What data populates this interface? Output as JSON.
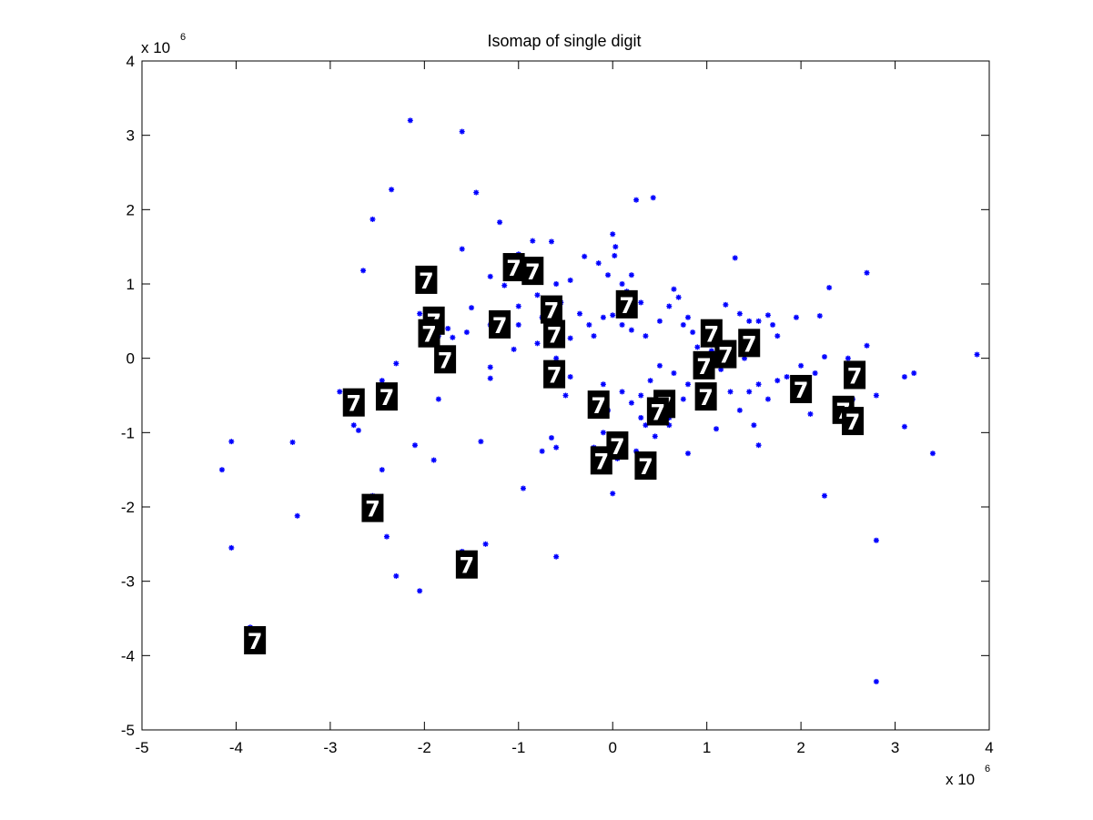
{
  "chart_data": {
    "type": "scatter",
    "title": "Isomap of single digit",
    "xlim": [
      -5,
      4
    ],
    "ylim": [
      -5,
      4
    ],
    "x_ticks": [
      "-5",
      "-4",
      "-3",
      "-2",
      "-1",
      "0",
      "1",
      "2",
      "3",
      "4"
    ],
    "y_ticks": [
      "-5",
      "-4",
      "-3",
      "-2",
      "-1",
      "0",
      "1",
      "2",
      "3",
      "4"
    ],
    "x_exponent": {
      "base": "x 10",
      "power": "6"
    },
    "y_exponent": {
      "base": "x 10",
      "power": "6"
    },
    "grid": false,
    "marker_color": "#0000ff",
    "points": [
      [
        -2.15,
        3.2
      ],
      [
        -1.6,
        3.05
      ],
      [
        -2.35,
        2.27
      ],
      [
        -1.45,
        2.23
      ],
      [
        -2.55,
        1.87
      ],
      [
        -1.2,
        1.83
      ],
      [
        -2.65,
        1.18
      ],
      [
        -2.0,
        1.18
      ],
      [
        -1.6,
        1.47
      ],
      [
        -1.0,
        1.4
      ],
      [
        -0.85,
        1.58
      ],
      [
        -0.65,
        1.57
      ],
      [
        -0.3,
        1.37
      ],
      [
        -0.45,
        1.05
      ],
      [
        -1.3,
        1.1
      ],
      [
        -1.15,
        0.98
      ],
      [
        -0.6,
        1.0
      ],
      [
        -0.8,
        0.85
      ],
      [
        -0.75,
        0.55
      ],
      [
        -0.55,
        0.45
      ],
      [
        -0.35,
        0.6
      ],
      [
        -0.25,
        0.45
      ],
      [
        -0.45,
        0.27
      ],
      [
        -1.0,
        0.45
      ],
      [
        -1.05,
        0.12
      ],
      [
        -1.3,
        0.45
      ],
      [
        -1.5,
        0.68
      ],
      [
        -1.55,
        0.35
      ],
      [
        -1.75,
        0.4
      ],
      [
        -1.85,
        0.3
      ],
      [
        -1.95,
        0.55
      ],
      [
        -2.05,
        0.6
      ],
      [
        -1.75,
        0.0
      ],
      [
        -1.3,
        -0.12
      ],
      [
        -1.3,
        -0.27
      ],
      [
        -0.8,
        0.2
      ],
      [
        0.0,
        1.67
      ],
      [
        0.03,
        1.5
      ],
      [
        0.02,
        1.38
      ],
      [
        -0.15,
        1.28
      ],
      [
        -0.05,
        1.12
      ],
      [
        0.1,
        1.0
      ],
      [
        0.2,
        1.12
      ],
      [
        0.15,
        0.9
      ],
      [
        0.3,
        0.75
      ],
      [
        0.25,
        2.13
      ],
      [
        0.43,
        2.16
      ],
      [
        -0.1,
        0.55
      ],
      [
        -0.2,
        0.3
      ],
      [
        0.0,
        0.58
      ],
      [
        0.1,
        0.45
      ],
      [
        0.2,
        0.38
      ],
      [
        0.35,
        0.3
      ],
      [
        0.5,
        0.5
      ],
      [
        0.6,
        0.7
      ],
      [
        0.65,
        0.93
      ],
      [
        0.7,
        0.82
      ],
      [
        0.75,
        0.45
      ],
      [
        0.8,
        0.55
      ],
      [
        0.85,
        0.35
      ],
      [
        0.9,
        0.15
      ],
      [
        0.95,
        0.05
      ],
      [
        1.1,
        0.3
      ],
      [
        1.2,
        0.72
      ],
      [
        1.3,
        1.35
      ],
      [
        1.35,
        0.6
      ],
      [
        1.45,
        0.5
      ],
      [
        1.55,
        0.5
      ],
      [
        1.65,
        0.58
      ],
      [
        1.7,
        0.45
      ],
      [
        1.95,
        0.55
      ],
      [
        2.2,
        0.57
      ],
      [
        2.3,
        0.95
      ],
      [
        2.7,
        1.15
      ],
      [
        2.7,
        0.17
      ],
      [
        2.25,
        0.02
      ],
      [
        2.15,
        -0.2
      ],
      [
        2.0,
        -0.1
      ],
      [
        1.85,
        -0.25
      ],
      [
        1.75,
        -0.3
      ],
      [
        1.65,
        -0.55
      ],
      [
        1.55,
        -0.35
      ],
      [
        1.45,
        -0.45
      ],
      [
        1.35,
        -0.7
      ],
      [
        1.5,
        -0.9
      ],
      [
        1.55,
        -1.17
      ],
      [
        1.1,
        -0.95
      ],
      [
        1.25,
        -0.45
      ],
      [
        0.75,
        -0.55
      ],
      [
        0.8,
        -0.35
      ],
      [
        0.65,
        -0.2
      ],
      [
        0.5,
        -0.1
      ],
      [
        0.4,
        -0.3
      ],
      [
        0.3,
        -0.5
      ],
      [
        0.2,
        -0.6
      ],
      [
        0.1,
        -0.45
      ],
      [
        -0.1,
        -0.35
      ],
      [
        -0.2,
        -0.5
      ],
      [
        0.3,
        -0.8
      ],
      [
        0.35,
        -0.9
      ],
      [
        0.45,
        -1.05
      ],
      [
        0.6,
        -0.9
      ],
      [
        0.25,
        -1.25
      ],
      [
        -0.1,
        -1.0
      ],
      [
        -0.2,
        -1.2
      ],
      [
        0.0,
        -1.15
      ],
      [
        0.05,
        -1.35
      ],
      [
        0.0,
        -1.82
      ],
      [
        0.8,
        -1.28
      ],
      [
        -0.6,
        -1.2
      ],
      [
        -0.75,
        -1.25
      ],
      [
        -0.65,
        -1.07
      ],
      [
        -0.5,
        -0.5
      ],
      [
        -0.6,
        0.0
      ],
      [
        -0.45,
        -0.25
      ],
      [
        -0.95,
        -1.75
      ],
      [
        -0.6,
        -2.67
      ],
      [
        2.25,
        -1.85
      ],
      [
        2.1,
        -0.75
      ],
      [
        2.55,
        -0.55
      ],
      [
        2.5,
        0.0
      ],
      [
        2.8,
        -0.5
      ],
      [
        3.1,
        -0.25
      ],
      [
        3.2,
        -0.2
      ],
      [
        3.1,
        -0.92
      ],
      [
        3.4,
        -1.28
      ],
      [
        3.87,
        0.05
      ],
      [
        2.8,
        -2.45
      ],
      [
        2.8,
        -4.35
      ],
      [
        -4.15,
        -1.5
      ],
      [
        -4.05,
        -1.12
      ],
      [
        -4.05,
        -2.55
      ],
      [
        -3.4,
        -1.13
      ],
      [
        -3.35,
        -2.12
      ],
      [
        -2.9,
        -0.45
      ],
      [
        -2.75,
        -0.9
      ],
      [
        -2.7,
        -0.97
      ],
      [
        -2.45,
        -0.3
      ],
      [
        -2.45,
        -0.6
      ],
      [
        -2.3,
        -0.07
      ],
      [
        -2.55,
        -1.85
      ],
      [
        -2.45,
        -1.5
      ],
      [
        -2.4,
        -2.4
      ],
      [
        -2.3,
        -2.93
      ],
      [
        -2.05,
        -3.13
      ],
      [
        -2.1,
        -1.17
      ],
      [
        -1.9,
        -1.37
      ],
      [
        -1.85,
        -0.55
      ],
      [
        -1.4,
        -1.12
      ],
      [
        -1.35,
        -2.5
      ],
      [
        -1.6,
        -2.6
      ],
      [
        -3.85,
        -3.62
      ],
      [
        1.0,
        0.0
      ],
      [
        1.4,
        0.0
      ],
      [
        1.15,
        -0.15
      ],
      [
        0.55,
        -0.5
      ],
      [
        0.6,
        -0.8
      ],
      [
        -0.05,
        -0.7
      ],
      [
        -0.55,
        0.75
      ],
      [
        -0.7,
        0.3
      ],
      [
        -1.0,
        0.7
      ],
      [
        -1.7,
        0.28
      ],
      [
        -1.9,
        0.2
      ],
      [
        1.05,
        0.1
      ],
      [
        1.75,
        0.3
      ]
    ],
    "thumbnails": [
      {
        "x": -1.98,
        "y": 1.05,
        "label": "7"
      },
      {
        "x": -1.05,
        "y": 1.22,
        "label": "7"
      },
      {
        "x": -0.85,
        "y": 1.17,
        "label": "7"
      },
      {
        "x": -0.65,
        "y": 0.65,
        "label": "7"
      },
      {
        "x": 0.15,
        "y": 0.72,
        "label": "7"
      },
      {
        "x": -1.9,
        "y": 0.5,
        "label": "7"
      },
      {
        "x": -1.95,
        "y": 0.33,
        "label": "7"
      },
      {
        "x": -1.2,
        "y": 0.45,
        "label": "7"
      },
      {
        "x": -0.62,
        "y": 0.32,
        "label": "7"
      },
      {
        "x": -1.78,
        "y": -0.02,
        "label": "7"
      },
      {
        "x": -0.62,
        "y": -0.22,
        "label": "7"
      },
      {
        "x": 1.05,
        "y": 0.33,
        "label": "7"
      },
      {
        "x": 1.2,
        "y": 0.05,
        "label": "7"
      },
      {
        "x": 1.45,
        "y": 0.2,
        "label": "7"
      },
      {
        "x": 0.97,
        "y": -0.1,
        "label": "7"
      },
      {
        "x": 0.99,
        "y": -0.52,
        "label": "7"
      },
      {
        "x": 0.55,
        "y": -0.62,
        "label": "7"
      },
      {
        "x": 0.48,
        "y": -0.72,
        "label": "7"
      },
      {
        "x": -0.15,
        "y": -0.63,
        "label": "7"
      },
      {
        "x": 2.0,
        "y": -0.42,
        "label": "7"
      },
      {
        "x": 2.57,
        "y": -0.23,
        "label": "7"
      },
      {
        "x": 2.45,
        "y": -0.7,
        "label": "7"
      },
      {
        "x": 2.55,
        "y": -0.85,
        "label": "7"
      },
      {
        "x": 0.05,
        "y": -1.18,
        "label": "7"
      },
      {
        "x": -0.12,
        "y": -1.38,
        "label": "7"
      },
      {
        "x": 0.35,
        "y": -1.45,
        "label": "7"
      },
      {
        "x": -2.75,
        "y": -0.6,
        "label": "7"
      },
      {
        "x": -2.4,
        "y": -0.52,
        "label": "7"
      },
      {
        "x": -2.55,
        "y": -2.02,
        "label": "7"
      },
      {
        "x": -1.55,
        "y": -2.78,
        "label": "7"
      },
      {
        "x": -3.8,
        "y": -3.8,
        "label": "7"
      }
    ]
  }
}
